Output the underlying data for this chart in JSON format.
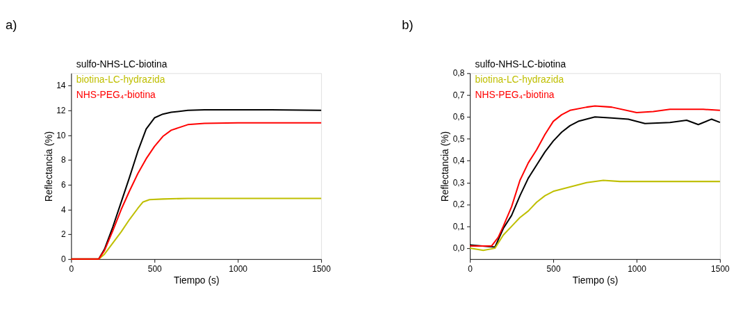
{
  "chart_data": [
    {
      "type": "line",
      "title": "a)",
      "xlabel": "Tiempo (s)",
      "ylabel": "Reflectancia (%)",
      "xlim": [
        0,
        1500
      ],
      "xticks": [
        0,
        500,
        1000,
        1500
      ],
      "ylim": [
        0,
        15
      ],
      "yticks": [
        0,
        2,
        4,
        6,
        8,
        10,
        12,
        14
      ],
      "grid": false,
      "legend": "top left",
      "marker": "none",
      "line_style": "solid",
      "series": [
        {
          "name": "sulfo-NHS-LC-biotina",
          "color": "#000000",
          "x": [
            0,
            100,
            165,
            200,
            250,
            300,
            350,
            400,
            450,
            500,
            550,
            600,
            700,
            800,
            1000,
            1200,
            1500
          ],
          "values": [
            0,
            0,
            0,
            0.8,
            2.6,
            4.6,
            6.6,
            8.7,
            10.5,
            11.4,
            11.7,
            11.85,
            12.0,
            12.05,
            12.05,
            12.05,
            12.0
          ]
        },
        {
          "name": "biotina-LC-hydrazida",
          "color": "#bfbf00",
          "x": [
            0,
            100,
            165,
            200,
            250,
            300,
            350,
            400,
            430,
            470,
            550,
            700,
            1000,
            1500
          ],
          "values": [
            0,
            0,
            0,
            0.4,
            1.3,
            2.2,
            3.2,
            4.1,
            4.6,
            4.8,
            4.85,
            4.9,
            4.9,
            4.9
          ]
        },
        {
          "name": "NHS-PEG₄-biotina",
          "color": "#ff0000",
          "x": [
            0,
            100,
            165,
            200,
            250,
            300,
            350,
            400,
            450,
            500,
            550,
            600,
            700,
            800,
            1000,
            1500
          ],
          "values": [
            0,
            0,
            0,
            0.7,
            2.3,
            4.0,
            5.5,
            6.9,
            8.1,
            9.1,
            9.9,
            10.4,
            10.85,
            10.95,
            11.0,
            11.0
          ]
        }
      ]
    },
    {
      "type": "line",
      "title": "b)",
      "xlabel": "Tiempo (s)",
      "ylabel": "Reflectancia (%)",
      "xlim": [
        0,
        1500
      ],
      "xticks": [
        0,
        500,
        1000,
        1500
      ],
      "ylim": [
        -0.05,
        0.8
      ],
      "yticks": [
        {
          "value": 0,
          "label": "0,0"
        },
        {
          "value": 0.1,
          "label": "0,1"
        },
        {
          "value": 0.2,
          "label": "0,2"
        },
        {
          "value": 0.3,
          "label": "0,3"
        },
        {
          "value": 0.4,
          "label": "0,4"
        },
        {
          "value": 0.5,
          "label": "0,5"
        },
        {
          "value": 0.6,
          "label": "0,6"
        },
        {
          "value": 0.7,
          "label": "0,7"
        },
        {
          "value": 0.8,
          "label": "0,8"
        }
      ],
      "grid": false,
      "legend": "top left",
      "marker": "none",
      "line_style": "solid",
      "series": [
        {
          "name": "sulfo-NHS-LC-biotina",
          "color": "#000000",
          "x": [
            0,
            150,
            200,
            250,
            300,
            350,
            400,
            450,
            500,
            550,
            600,
            650,
            750,
            850,
            950,
            1050,
            1200,
            1300,
            1370,
            1450,
            1500
          ],
          "values": [
            0.015,
            0.005,
            0.09,
            0.15,
            0.24,
            0.32,
            0.38,
            0.44,
            0.49,
            0.53,
            0.56,
            0.58,
            0.6,
            0.595,
            0.59,
            0.57,
            0.575,
            0.585,
            0.565,
            0.59,
            0.575
          ]
        },
        {
          "name": "biotina-LC-hydrazida",
          "color": "#bfbf00",
          "x": [
            0,
            80,
            150,
            200,
            250,
            300,
            350,
            400,
            450,
            500,
            600,
            700,
            800,
            900,
            1000,
            1200,
            1500
          ],
          "values": [
            0.0,
            -0.01,
            0.0,
            0.06,
            0.1,
            0.14,
            0.17,
            0.21,
            0.24,
            0.26,
            0.28,
            0.3,
            0.31,
            0.305,
            0.305,
            0.305,
            0.305
          ]
        },
        {
          "name": "NHS-PEG₄-biotina",
          "color": "#ff0000",
          "x": [
            0,
            130,
            170,
            200,
            250,
            300,
            350,
            400,
            450,
            500,
            550,
            600,
            700,
            750,
            850,
            1000,
            1100,
            1200,
            1300,
            1400,
            1500
          ],
          "values": [
            0.01,
            0.01,
            0.05,
            0.1,
            0.19,
            0.31,
            0.39,
            0.45,
            0.52,
            0.58,
            0.61,
            0.63,
            0.645,
            0.65,
            0.645,
            0.62,
            0.625,
            0.635,
            0.635,
            0.635,
            0.63
          ]
        }
      ]
    }
  ]
}
